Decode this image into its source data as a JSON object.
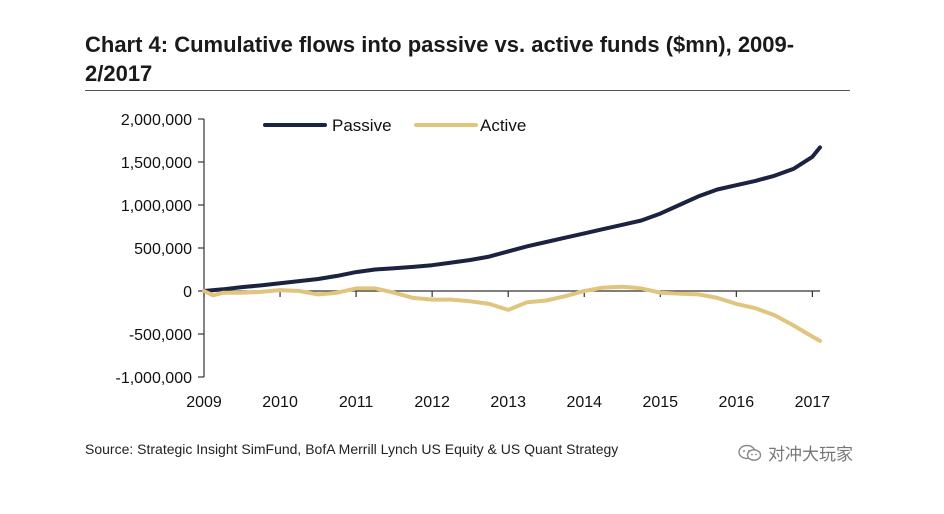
{
  "title": "Chart 4: Cumulative flows into passive vs. active funds ($mn), 2009-2/2017",
  "source": "Source: Strategic Insight SimFund, BofA Merrill Lynch US Equity & US Quant Strategy",
  "watermark": "对冲大玩家",
  "colors": {
    "passive": "#1c2340",
    "active": "#e0c57e",
    "axis": "#333333"
  },
  "chart_data": {
    "type": "line",
    "title": "Chart 4: Cumulative flows into passive vs. active funds ($mn), 2009-2/2017",
    "xlabel": "",
    "ylabel": "",
    "xlim": [
      2009,
      2017.1
    ],
    "ylim": [
      -1000000,
      2000000
    ],
    "x_ticks": [
      2009,
      2010,
      2011,
      2012,
      2013,
      2014,
      2015,
      2016,
      2017
    ],
    "x_tick_labels": [
      "2009",
      "2010",
      "2011",
      "2012",
      "2013",
      "2014",
      "2015",
      "2016",
      "2017"
    ],
    "y_ticks": [
      -1000000,
      -500000,
      0,
      500000,
      1000000,
      1500000,
      2000000
    ],
    "y_tick_labels": [
      "-1,000,000",
      "-500,000",
      "0",
      "500,000",
      "1,000,000",
      "1,500,000",
      "2,000,000"
    ],
    "legend": "top-left",
    "series": [
      {
        "name": "Passive",
        "color": "#1c2340",
        "x": [
          2009.0,
          2009.25,
          2009.5,
          2009.75,
          2010.0,
          2010.25,
          2010.5,
          2010.75,
          2011.0,
          2011.25,
          2011.5,
          2011.75,
          2012.0,
          2012.25,
          2012.5,
          2012.75,
          2013.0,
          2013.25,
          2013.5,
          2013.75,
          2014.0,
          2014.25,
          2014.5,
          2014.75,
          2015.0,
          2015.25,
          2015.5,
          2015.75,
          2016.0,
          2016.25,
          2016.5,
          2016.75,
          2017.0,
          2017.1
        ],
        "y": [
          0,
          20000,
          45000,
          65000,
          90000,
          115000,
          140000,
          175000,
          220000,
          250000,
          265000,
          280000,
          300000,
          330000,
          360000,
          400000,
          460000,
          520000,
          570000,
          620000,
          670000,
          720000,
          770000,
          820000,
          900000,
          1000000,
          1100000,
          1180000,
          1230000,
          1280000,
          1340000,
          1420000,
          1560000,
          1670000
        ]
      },
      {
        "name": "Active",
        "color": "#e0c57e",
        "x": [
          2009.0,
          2009.12,
          2009.25,
          2009.5,
          2009.75,
          2010.0,
          2010.25,
          2010.5,
          2010.75,
          2011.0,
          2011.25,
          2011.5,
          2011.75,
          2012.0,
          2012.25,
          2012.5,
          2012.75,
          2013.0,
          2013.25,
          2013.5,
          2013.75,
          2014.0,
          2014.25,
          2014.5,
          2014.75,
          2015.0,
          2015.25,
          2015.5,
          2015.75,
          2016.0,
          2016.25,
          2016.5,
          2016.75,
          2017.0,
          2017.1
        ],
        "y": [
          0,
          -50000,
          -20000,
          -20000,
          -10000,
          10000,
          0,
          -40000,
          -20000,
          30000,
          30000,
          -20000,
          -80000,
          -100000,
          -100000,
          -120000,
          -150000,
          -220000,
          -130000,
          -110000,
          -60000,
          0,
          40000,
          50000,
          30000,
          -20000,
          -30000,
          -40000,
          -80000,
          -150000,
          -200000,
          -280000,
          -400000,
          -530000,
          -580000
        ]
      }
    ]
  }
}
